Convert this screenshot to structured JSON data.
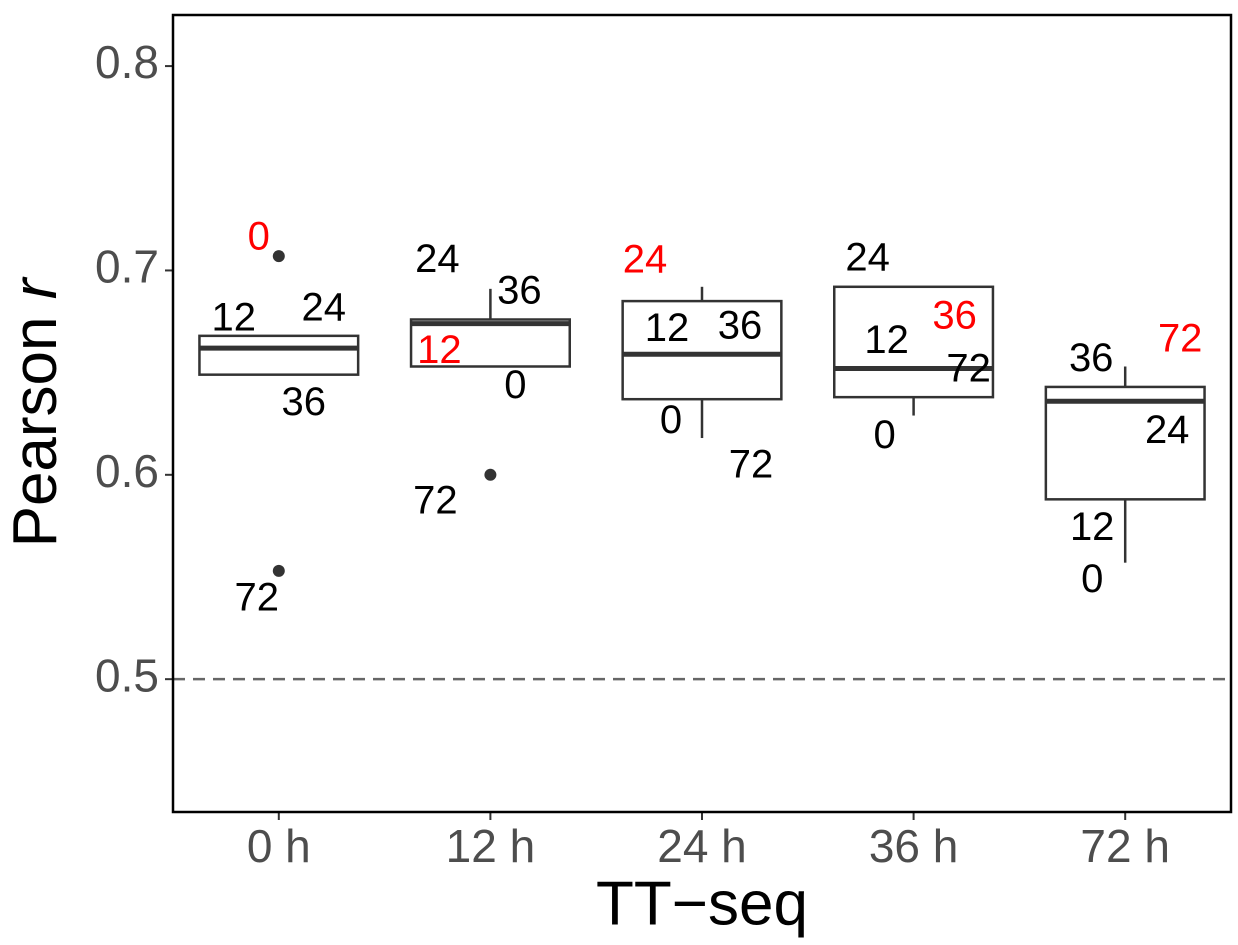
{
  "chart_data": {
    "type": "box",
    "x_label": "TT−seq",
    "y_label": "Pearson",
    "y_label_symbol": "r",
    "categories": [
      "0 h",
      "12 h",
      "24 h",
      "36 h",
      "72 h"
    ],
    "ylim": [
      0.435,
      0.825
    ],
    "yticks": [
      0.5,
      0.6,
      0.7,
      0.8
    ],
    "hline": 0.5,
    "box_color": "#333333",
    "boxes": [
      {
        "lower": 0.649,
        "q1": 0.649,
        "median": 0.662,
        "q3": 0.668,
        "upper": 0.668,
        "outliers": [
          0.707,
          0.553
        ]
      },
      {
        "lower": 0.653,
        "q1": 0.653,
        "median": 0.674,
        "q3": 0.676,
        "upper": 0.691,
        "outliers": [
          0.6
        ]
      },
      {
        "lower": 0.618,
        "q1": 0.637,
        "median": 0.659,
        "q3": 0.685,
        "upper": 0.692,
        "outliers": []
      },
      {
        "lower": 0.629,
        "q1": 0.638,
        "median": 0.652,
        "q3": 0.692,
        "upper": 0.692,
        "outliers": []
      },
      {
        "lower": 0.557,
        "q1": 0.588,
        "median": 0.636,
        "q3": 0.643,
        "upper": 0.653,
        "outliers": []
      }
    ],
    "points": [
      [
        {
          "label": "0",
          "value": 0.707,
          "color": "#ff0000"
        },
        {
          "label": "12",
          "value": 0.668,
          "color": "#000000"
        },
        {
          "label": "24",
          "value": 0.662,
          "color": "#000000"
        },
        {
          "label": "36",
          "value": 0.649,
          "color": "#000000"
        },
        {
          "label": "72",
          "value": 0.553,
          "color": "#000000"
        }
      ],
      [
        {
          "label": "24",
          "value": 0.676,
          "color": "#000000"
        },
        {
          "label": "36",
          "value": 0.691,
          "color": "#000000"
        },
        {
          "label": "12",
          "value": 0.674,
          "color": "#ff0000"
        },
        {
          "label": "0",
          "value": 0.653,
          "color": "#000000"
        },
        {
          "label": "72",
          "value": 0.6,
          "color": "#000000"
        }
      ],
      [
        {
          "label": "24",
          "value": 0.692,
          "color": "#ff0000"
        },
        {
          "label": "36",
          "value": 0.685,
          "color": "#000000"
        },
        {
          "label": "12",
          "value": 0.659,
          "color": "#000000"
        },
        {
          "label": "0",
          "value": 0.637,
          "color": "#000000"
        },
        {
          "label": "72",
          "value": 0.618,
          "color": "#000000"
        }
      ],
      [
        {
          "label": "24",
          "value": 0.692,
          "color": "#000000"
        },
        {
          "label": "36",
          "value": 0.692,
          "color": "#ff0000"
        },
        {
          "label": "12",
          "value": 0.652,
          "color": "#000000"
        },
        {
          "label": "72",
          "value": 0.638,
          "color": "#000000"
        },
        {
          "label": "0",
          "value": 0.629,
          "color": "#000000"
        }
      ],
      [
        {
          "label": "36",
          "value": 0.653,
          "color": "#000000"
        },
        {
          "label": "72",
          "value": 0.643,
          "color": "#ff0000"
        },
        {
          "label": "24",
          "value": 0.636,
          "color": "#000000"
        },
        {
          "label": "12",
          "value": 0.588,
          "color": "#000000"
        },
        {
          "label": "0",
          "value": 0.557,
          "color": "#000000"
        }
      ]
    ]
  }
}
